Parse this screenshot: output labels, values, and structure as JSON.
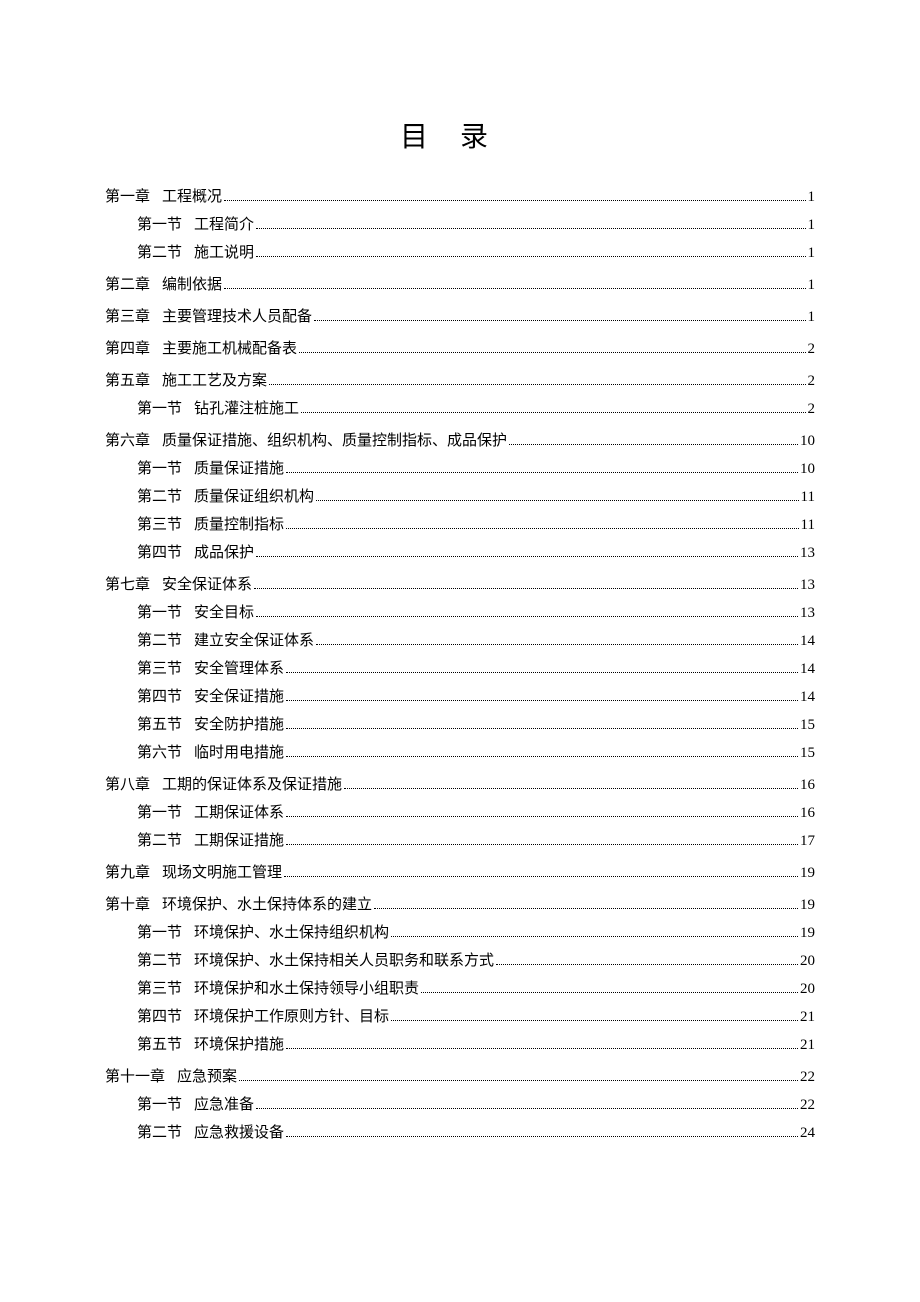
{
  "title": "目录",
  "title_fontsize": 28,
  "body_fontsize": 15,
  "text_color": "#000000",
  "background_color": "#ffffff",
  "dot_color": "#000000",
  "entries": [
    {
      "level": 1,
      "label": "第一章",
      "text": "工程概况",
      "page": "1"
    },
    {
      "level": 2,
      "label": "第一节",
      "text": "工程简介",
      "page": "1"
    },
    {
      "level": 2,
      "label": "第二节",
      "text": "施工说明",
      "page": "1"
    },
    {
      "level": 1,
      "label": "第二章",
      "text": "编制依据",
      "page": "1"
    },
    {
      "level": 1,
      "label": "第三章",
      "text": "主要管理技术人员配备",
      "page": "1"
    },
    {
      "level": 1,
      "label": "第四章",
      "text": "主要施工机械配备表",
      "page": "2"
    },
    {
      "level": 1,
      "label": "第五章",
      "text": "施工工艺及方案",
      "page": "2"
    },
    {
      "level": 2,
      "label": "第一节",
      "text": "钻孔灌注桩施工",
      "page": "2"
    },
    {
      "level": 1,
      "label": "第六章",
      "text": "质量保证措施、组织机构、质量控制指标、成品保护",
      "page": "10"
    },
    {
      "level": 2,
      "label": "第一节",
      "text": "质量保证措施",
      "page": "10"
    },
    {
      "level": 2,
      "label": "第二节",
      "text": "质量保证组织机构",
      "page": "11"
    },
    {
      "level": 2,
      "label": "第三节",
      "text": "质量控制指标",
      "page": "11"
    },
    {
      "level": 2,
      "label": "第四节",
      "text": "成品保护",
      "page": "13"
    },
    {
      "level": 1,
      "label": "第七章",
      "text": "安全保证体系",
      "page": "13"
    },
    {
      "level": 2,
      "label": "第一节",
      "text": "安全目标",
      "page": "13"
    },
    {
      "level": 2,
      "label": "第二节",
      "text": "建立安全保证体系",
      "page": "14"
    },
    {
      "level": 2,
      "label": "第三节",
      "text": "安全管理体系",
      "page": "14"
    },
    {
      "level": 2,
      "label": "第四节",
      "text": "安全保证措施",
      "page": "14"
    },
    {
      "level": 2,
      "label": "第五节",
      "text": "安全防护措施",
      "page": "15"
    },
    {
      "level": 2,
      "label": "第六节",
      "text": "临时用电措施",
      "page": "15"
    },
    {
      "level": 1,
      "label": "第八章",
      "text": "工期的保证体系及保证措施",
      "page": "16"
    },
    {
      "level": 2,
      "label": "第一节",
      "text": "工期保证体系",
      "page": "16"
    },
    {
      "level": 2,
      "label": "第二节",
      "text": "工期保证措施",
      "page": "17"
    },
    {
      "level": 1,
      "label": "第九章",
      "text": "现场文明施工管理",
      "page": "19"
    },
    {
      "level": 1,
      "label": "第十章",
      "text": "环境保护、水土保持体系的建立",
      "page": "19"
    },
    {
      "level": 2,
      "label": "第一节",
      "text": "环境保护、水土保持组织机构",
      "page": "19"
    },
    {
      "level": 2,
      "label": "第二节",
      "text": "环境保护、水土保持相关人员职务和联系方式",
      "page": "20"
    },
    {
      "level": 2,
      "label": "第三节",
      "text": "环境保护和水土保持领导小组职责",
      "page": "20"
    },
    {
      "level": 2,
      "label": "第四节",
      "text": "环境保护工作原则方针、目标",
      "page": "21"
    },
    {
      "level": 2,
      "label": "第五节",
      "text": "环境保护措施",
      "page": "21"
    },
    {
      "level": 1,
      "label": "第十一章",
      "text": "应急预案",
      "page": "22"
    },
    {
      "level": 2,
      "label": "第一节",
      "text": "应急准备",
      "page": "22"
    },
    {
      "level": 2,
      "label": "第二节",
      "text": "应急救援设备",
      "page": "24"
    }
  ]
}
